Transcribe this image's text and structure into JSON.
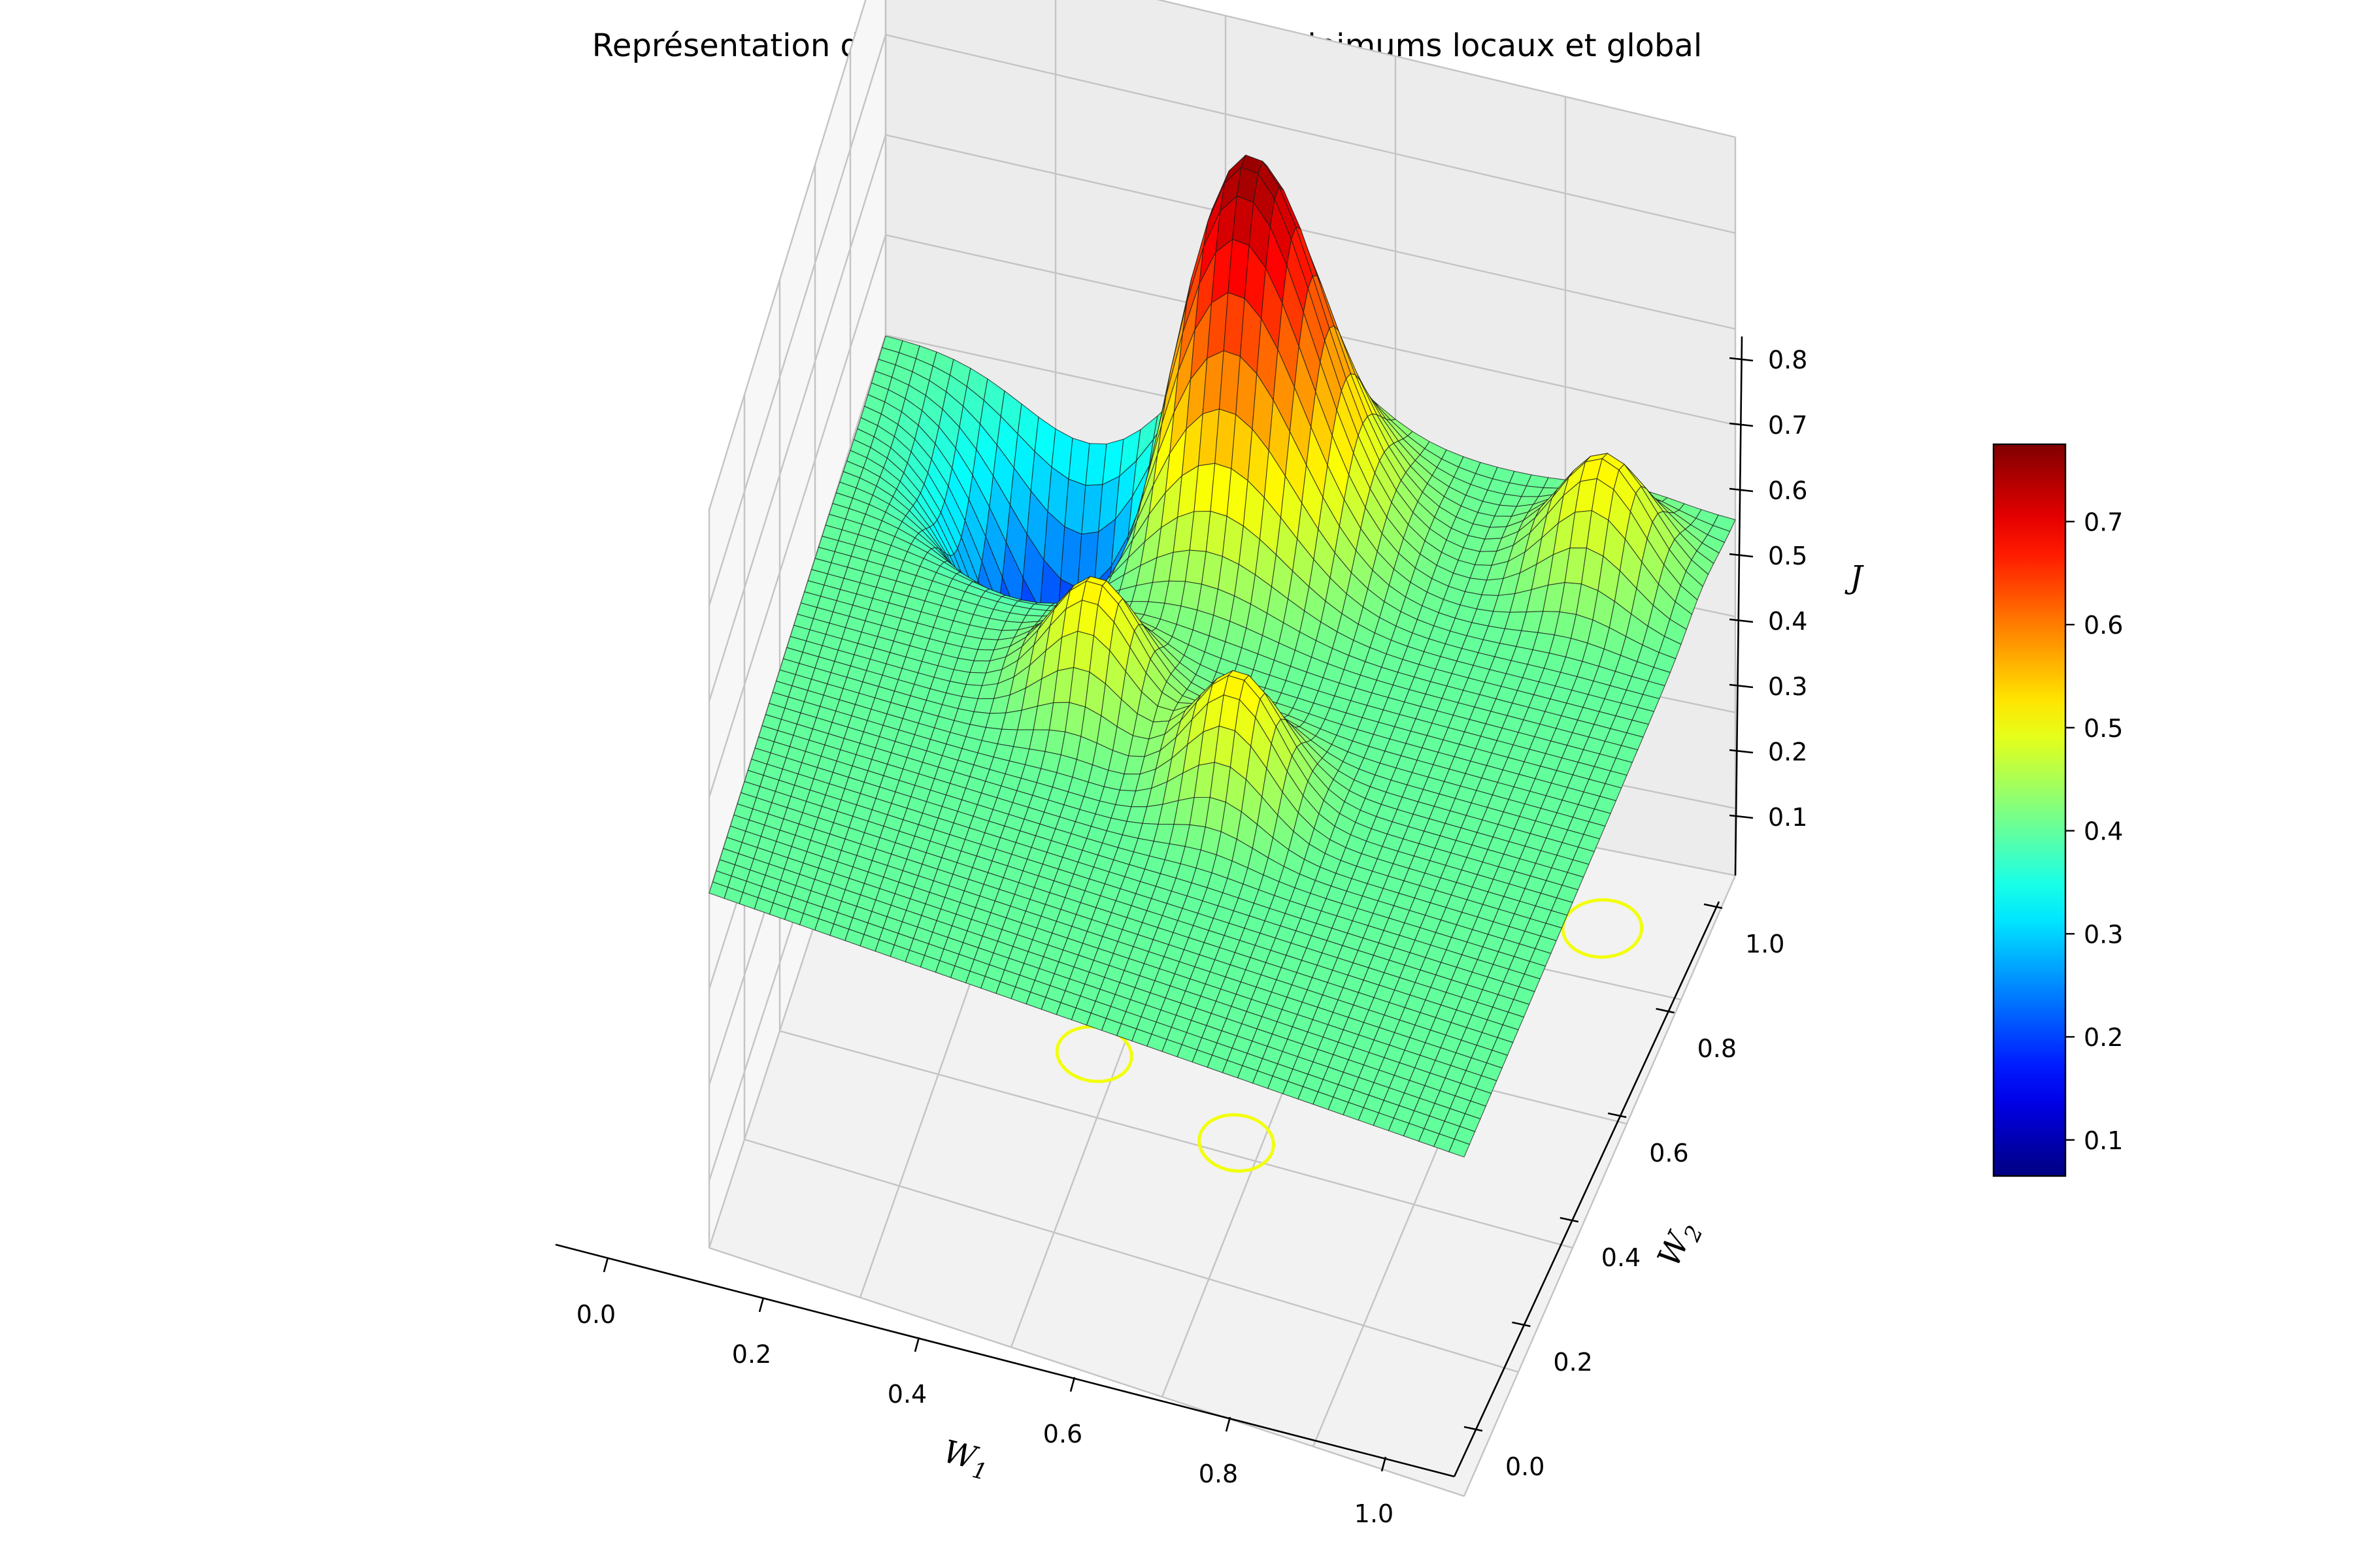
{
  "chart_data": {
    "type": "surface",
    "title": "Représentation de la fonction de coût avec minimums locaux et global",
    "xlabel": "W1",
    "ylabel": "W2",
    "zlabel": "J",
    "xlim": [
      0,
      1
    ],
    "ylim": [
      0,
      1
    ],
    "zlim": [
      0.03,
      0.8
    ],
    "xticks": [
      "0.0",
      "0.2",
      "0.4",
      "0.6",
      "0.8",
      "1.0"
    ],
    "yticks": [
      "0.0",
      "0.2",
      "0.4",
      "0.6",
      "0.8",
      "1.0"
    ],
    "zticks": [
      "0.1",
      "0.2",
      "0.3",
      "0.4",
      "0.5",
      "0.6",
      "0.7",
      "0.8"
    ],
    "colormap": "jet",
    "colorbar": {
      "range": [
        0.065,
        0.775
      ],
      "ticks": [
        "0.1",
        "0.2",
        "0.3",
        "0.4",
        "0.5",
        "0.6",
        "0.7"
      ]
    },
    "surface": {
      "base": 0.4,
      "grid": 50,
      "features": [
        {
          "kind": "peak",
          "w1": 0.46,
          "w2": 0.85,
          "amplitude": 0.375,
          "sigma": 0.09
        },
        {
          "kind": "valley",
          "w1": 0.25,
          "w2": 0.85,
          "amplitude": -0.33,
          "sigma": 0.085
        },
        {
          "kind": "peak",
          "w1": 0.37,
          "w2": 0.5,
          "amplitude": 0.12,
          "sigma": 0.055
        },
        {
          "kind": "peak",
          "w1": 0.57,
          "w2": 0.42,
          "amplitude": 0.12,
          "sigma": 0.055
        },
        {
          "kind": "peak",
          "w1": 0.88,
          "w2": 0.88,
          "amplitude": 0.12,
          "sigma": 0.055
        }
      ]
    },
    "floor_contours": [
      {
        "w1": 0.37,
        "w2": 0.5,
        "level": 0.5
      },
      {
        "w1": 0.57,
        "w2": 0.42,
        "level": 0.5
      },
      {
        "w1": 0.88,
        "w2": 0.88,
        "level": 0.5
      },
      {
        "w1": 0.25,
        "w2": 0.85,
        "level": 0.38
      }
    ]
  }
}
